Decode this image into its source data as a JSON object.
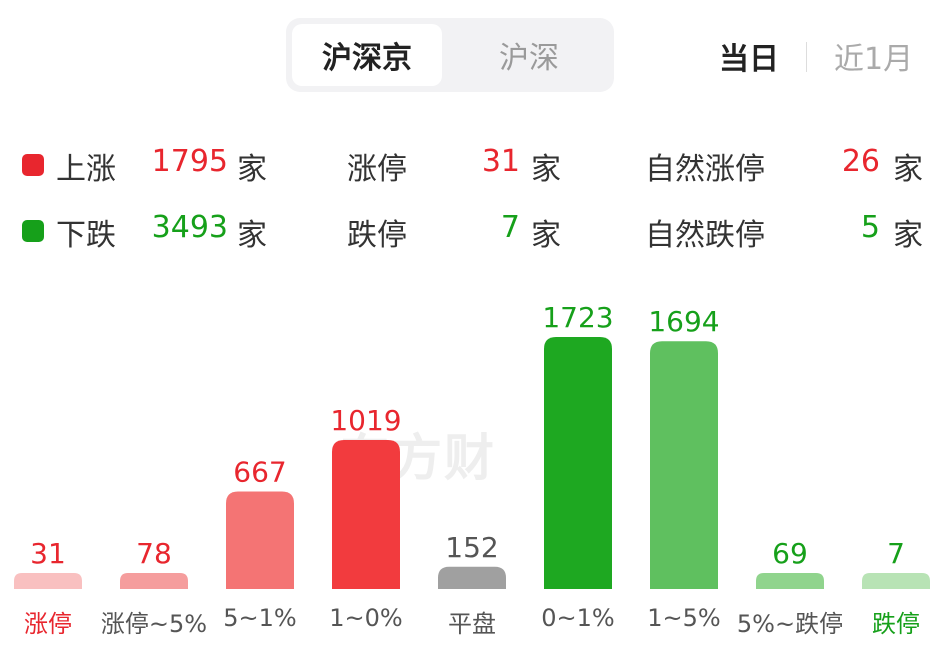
{
  "tabs": {
    "market_all": "沪深京",
    "market_sh_sz": "沪深"
  },
  "period": {
    "today": "当日",
    "month": "近1月"
  },
  "stats": {
    "up": {
      "label": "上涨",
      "value": "1795",
      "unit": "家"
    },
    "down": {
      "label": "下跌",
      "value": "3493",
      "unit": "家"
    },
    "limit_up": {
      "label": "涨停",
      "value": "31",
      "unit": "家"
    },
    "limit_down": {
      "label": "跌停",
      "value": "7",
      "unit": "家"
    },
    "natural_limit_up": {
      "label": "自然涨停",
      "value": "26",
      "unit": "家"
    },
    "natural_limit_down": {
      "label": "自然跌停",
      "value": "5",
      "unit": "家"
    }
  },
  "watermark": "东方财",
  "colors": {
    "up": "#e8262e",
    "down": "#16a01a",
    "flat": "#999999"
  },
  "chart_data": {
    "type": "bar",
    "categories": [
      "涨停",
      "涨停~5%",
      "5~1%",
      "1~0%",
      "平盘",
      "0~1%",
      "1~5%",
      "5%~跌停",
      "跌停"
    ],
    "values": [
      31,
      78,
      667,
      1019,
      152,
      1723,
      1694,
      69,
      7
    ],
    "bar_colors": [
      "#f9c0c0",
      "#f59d9d",
      "#f47474",
      "#f23b3e",
      "#a0a0a0",
      "#1ea821",
      "#5fc05f",
      "#90d48d",
      "#b8e3b5"
    ],
    "label_colors": [
      "#e8262e",
      "#e8262e",
      "#e8262e",
      "#e8262e",
      "#555555",
      "#16a01a",
      "#16a01a",
      "#16a01a",
      "#16a01a"
    ],
    "category_colors": [
      "#e8262e",
      "#555555",
      "#555555",
      "#555555",
      "#555555",
      "#555555",
      "#555555",
      "#555555",
      "#16a01a"
    ]
  }
}
